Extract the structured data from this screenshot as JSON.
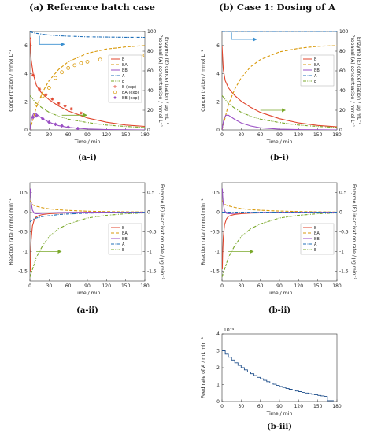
{
  "headers": {
    "left": "(a) Reference batch case",
    "right": "(b) Case 1: Dosing of A"
  },
  "colors": {
    "B": "#e0442c",
    "BA": "#d99a0c",
    "BB": "#9a4fc4",
    "A": "#1f6fb8",
    "E": "#7aa82a",
    "arrow_blue": "#3a8fd0",
    "arrow_green": "#7aa82a",
    "feed": "#1f4f8b"
  },
  "chart_data": [
    {
      "id": "a-i",
      "caption": "(a-i)",
      "type": "line",
      "xlabel": "Time / min",
      "ylabel": "Concentration / mmol L⁻¹",
      "ylabel_right": [
        "Propanal (A) concentration / mmol L⁻¹",
        "Enzyme (E) concentration / μg mL⁻¹"
      ],
      "xlim": [
        0,
        180
      ],
      "ylim": [
        0,
        7
      ],
      "ylim_right": [
        0,
        100
      ],
      "xticks": [
        "0",
        "30",
        "60",
        "90",
        "120",
        "150",
        "180"
      ],
      "yticks": [
        "0",
        "2",
        "4",
        "6"
      ],
      "yticks_right": [
        "0",
        "20",
        "40",
        "60",
        "80",
        "100"
      ],
      "legend": [
        "B",
        "BA",
        "BB",
        "A",
        "E",
        "B (exp)",
        "BA (exp)",
        "BB (exp)"
      ],
      "legend_position": "center-right",
      "series": [
        {
          "name": "B",
          "axis": "left",
          "style": "solid",
          "x": [
            0,
            2,
            5,
            10,
            15,
            20,
            30,
            45,
            60,
            90,
            120,
            150,
            180
          ],
          "y": [
            6.5,
            5.0,
            4.0,
            3.2,
            2.8,
            2.55,
            2.15,
            1.7,
            1.35,
            0.85,
            0.55,
            0.35,
            0.25
          ]
        },
        {
          "name": "BA",
          "axis": "left",
          "style": "dashed",
          "x": [
            0,
            5,
            10,
            20,
            30,
            45,
            60,
            90,
            120,
            150,
            180
          ],
          "y": [
            0,
            0.8,
            1.6,
            2.7,
            3.5,
            4.3,
            4.85,
            5.45,
            5.75,
            5.9,
            6.0
          ]
        },
        {
          "name": "BB",
          "axis": "left",
          "style": "solid",
          "x": [
            0,
            3,
            6,
            10,
            15,
            20,
            30,
            45,
            60,
            90,
            120,
            150,
            180
          ],
          "y": [
            0,
            0.9,
            1.2,
            1.15,
            0.95,
            0.8,
            0.55,
            0.3,
            0.18,
            0.07,
            0.03,
            0.01,
            0.0
          ]
        },
        {
          "name": "A",
          "axis": "right",
          "style": "dashdot",
          "x": [
            0,
            10,
            20,
            30,
            45,
            60,
            90,
            120,
            150,
            180
          ],
          "y": [
            99.5,
            98.2,
            97.2,
            96.5,
            95.7,
            95.2,
            94.6,
            94.3,
            94.1,
            94.0
          ]
        },
        {
          "name": "E",
          "axis": "right",
          "style": "dashdotdot",
          "x": [
            0,
            10,
            20,
            30,
            45,
            60,
            90,
            120,
            150,
            180
          ],
          "y": [
            35,
            27,
            22,
            18,
            14,
            11,
            7.5,
            5,
            3.5,
            2.5
          ]
        }
      ],
      "points": [
        {
          "name": "B (exp)",
          "marker": "star",
          "x": [
            0,
            5,
            15,
            25,
            35,
            45,
            55,
            65,
            80
          ],
          "y": [
            6.5,
            3.9,
            2.9,
            2.5,
            2.2,
            1.9,
            1.7,
            1.5,
            1.2
          ]
        },
        {
          "name": "BA (exp)",
          "marker": "circle",
          "x": [
            10,
            20,
            30,
            40,
            50,
            60,
            70,
            80,
            90,
            110,
            130,
            150,
            180
          ],
          "y": [
            1.8,
            2.4,
            3.0,
            3.7,
            4.1,
            4.4,
            4.6,
            4.75,
            4.85,
            5.0,
            5.1,
            5.15,
            5.3
          ]
        },
        {
          "name": "BB (exp)",
          "marker": "diamond",
          "x": [
            5,
            10,
            20,
            30,
            40,
            50,
            60,
            75
          ],
          "y": [
            0.9,
            1.0,
            0.8,
            0.55,
            0.4,
            0.3,
            0.2,
            0.1
          ]
        }
      ],
      "arrows": [
        {
          "color": "blue",
          "from": [
            15,
            95.5
          ],
          "via": [
            15,
            87
          ],
          "to": [
            50,
            87
          ]
        },
        {
          "color": "green",
          "from": [
            50,
            15
          ],
          "to": [
            85,
            15
          ]
        }
      ]
    },
    {
      "id": "b-i",
      "caption": "(b-i)",
      "type": "line",
      "xlabel": "Time / min",
      "ylabel": "Concentration / mmol L⁻¹",
      "ylabel_right": [
        "Propanal (A) concentration / mmol L⁻¹",
        "Enzyme (E) concentration / μg mL⁻¹"
      ],
      "xlim": [
        0,
        180
      ],
      "ylim": [
        0,
        7
      ],
      "ylim_right": [
        0,
        100
      ],
      "xticks": [
        "0",
        "30",
        "60",
        "90",
        "120",
        "150",
        "180"
      ],
      "yticks": [
        "0",
        "2",
        "4",
        "6"
      ],
      "yticks_right": [
        "0",
        "20",
        "40",
        "60",
        "80",
        "100"
      ],
      "legend": [
        "B",
        "BA",
        "BB",
        "A",
        "E"
      ],
      "legend_position": "center-right",
      "series": [
        {
          "name": "B",
          "axis": "left",
          "style": "solid",
          "x": [
            0,
            2,
            5,
            10,
            15,
            20,
            30,
            45,
            60,
            90,
            120,
            150,
            180
          ],
          "y": [
            6.0,
            4.3,
            3.5,
            3.0,
            2.7,
            2.45,
            2.05,
            1.6,
            1.25,
            0.8,
            0.5,
            0.32,
            0.22
          ]
        },
        {
          "name": "BA",
          "axis": "left",
          "style": "dashed",
          "x": [
            0,
            5,
            10,
            20,
            30,
            45,
            60,
            90,
            120,
            150,
            180
          ],
          "y": [
            0,
            0.9,
            1.8,
            2.9,
            3.7,
            4.5,
            5.0,
            5.55,
            5.8,
            5.95,
            6.0
          ]
        },
        {
          "name": "BB",
          "axis": "left",
          "style": "solid",
          "x": [
            0,
            3,
            6,
            10,
            15,
            20,
            30,
            45,
            60,
            90,
            120,
            150,
            180
          ],
          "y": [
            0,
            0.8,
            1.05,
            1.05,
            0.9,
            0.75,
            0.5,
            0.28,
            0.15,
            0.05,
            0.02,
            0.01,
            0.0
          ]
        },
        {
          "name": "A",
          "axis": "right",
          "style": "dashdot",
          "x": [
            0,
            30,
            60,
            90,
            120,
            150,
            180
          ],
          "y": [
            100,
            100,
            100,
            100,
            100,
            100,
            100
          ]
        },
        {
          "name": "E",
          "axis": "right",
          "style": "dashdotdot",
          "x": [
            0,
            10,
            20,
            30,
            45,
            60,
            90,
            120,
            150,
            180
          ],
          "y": [
            35,
            27,
            22,
            18,
            14,
            11,
            7.5,
            5,
            3.5,
            2.5
          ]
        }
      ],
      "arrows": [
        {
          "color": "blue",
          "from": [
            15,
            99
          ],
          "via": [
            15,
            92
          ],
          "to": [
            50,
            92
          ]
        },
        {
          "color": "green",
          "from": [
            60,
            20
          ],
          "to": [
            95,
            20
          ]
        }
      ]
    },
    {
      "id": "a-ii",
      "caption": "(a-ii)",
      "type": "line",
      "xlabel": "Time / min",
      "ylabel": "Reaction rate / mmol min⁻¹",
      "ylabel_right": [
        "Enzyme (E) inactivation rate / μg min⁻¹"
      ],
      "xlim": [
        0,
        180
      ],
      "ylim": [
        -1.75,
        0.75
      ],
      "ylim_right": [
        -1.75,
        0.75
      ],
      "xticks": [
        "0",
        "30",
        "60",
        "90",
        "120",
        "150",
        "180"
      ],
      "yticks": [
        "-1.5",
        "-1",
        "-0.5",
        "0",
        "0.5"
      ],
      "yticks_right": [
        "-1.5",
        "-1",
        "-0.5",
        "0",
        "0.5"
      ],
      "legend": [
        "B",
        "BA",
        "BB",
        "A",
        "E"
      ],
      "legend_position": "center-right",
      "series": [
        {
          "name": "B",
          "axis": "left",
          "style": "solid",
          "x": [
            0.5,
            1,
            2,
            4,
            7,
            10,
            15,
            20,
            30,
            45,
            60,
            90,
            120,
            180
          ],
          "y": [
            -1.5,
            -1.1,
            -0.7,
            -0.35,
            -0.18,
            -0.12,
            -0.08,
            -0.06,
            -0.04,
            -0.025,
            -0.018,
            -0.01,
            -0.006,
            -0.002
          ]
        },
        {
          "name": "BA",
          "axis": "left",
          "style": "dashed",
          "x": [
            0,
            5,
            10,
            20,
            30,
            45,
            60,
            90,
            120,
            150,
            180
          ],
          "y": [
            0.3,
            0.18,
            0.15,
            0.11,
            0.085,
            0.06,
            0.045,
            0.025,
            0.015,
            0.008,
            0.005
          ]
        },
        {
          "name": "BB",
          "axis": "left",
          "style": "solid",
          "x": [
            0.5,
            1,
            2,
            4,
            7,
            10,
            15,
            20,
            30,
            45,
            60,
            90,
            180
          ],
          "y": [
            0.6,
            0.45,
            0.25,
            0.05,
            -0.03,
            -0.04,
            -0.035,
            -0.03,
            -0.02,
            -0.012,
            -0.008,
            -0.003,
            0.0
          ]
        },
        {
          "name": "A",
          "axis": "left",
          "style": "dashdot",
          "x": [
            0,
            5,
            10,
            20,
            30,
            45,
            60,
            90,
            120,
            150,
            180
          ],
          "y": [
            -0.25,
            -0.18,
            -0.15,
            -0.11,
            -0.09,
            -0.06,
            -0.045,
            -0.025,
            -0.015,
            -0.008,
            -0.005
          ]
        },
        {
          "name": "E",
          "axis": "right",
          "style": "dashdotdot",
          "x": [
            0,
            5,
            10,
            20,
            30,
            45,
            60,
            90,
            120,
            150,
            180
          ],
          "y": [
            -1.65,
            -1.4,
            -1.15,
            -0.85,
            -0.62,
            -0.42,
            -0.3,
            -0.15,
            -0.08,
            -0.04,
            -0.02
          ]
        }
      ],
      "arrows": [
        {
          "color": "green",
          "from": [
            10,
            -1.0
          ],
          "to": [
            45,
            -1.0
          ]
        }
      ]
    },
    {
      "id": "b-ii",
      "caption": "(b-ii)",
      "type": "line",
      "xlabel": "Time / min",
      "ylabel": "Reaction rate / mmol min⁻¹",
      "ylabel_right": [
        "Enzyme (E) inactivation rate / μg min⁻¹"
      ],
      "xlim": [
        0,
        180
      ],
      "ylim": [
        -1.75,
        0.75
      ],
      "ylim_right": [
        -1.75,
        0.75
      ],
      "xticks": [
        "0",
        "30",
        "60",
        "90",
        "120",
        "150",
        "180"
      ],
      "yticks": [
        "-1.5",
        "-1",
        "-0.5",
        "0",
        "0.5"
      ],
      "yticks_right": [
        "-1.5",
        "-1",
        "-0.5",
        "0",
        "0.5"
      ],
      "legend": [
        "B",
        "BA",
        "BB",
        "A",
        "E"
      ],
      "legend_position": "center-right",
      "series": [
        {
          "name": "B",
          "axis": "left",
          "style": "solid",
          "x": [
            0.5,
            1,
            2,
            4,
            7,
            10,
            15,
            20,
            30,
            45,
            60,
            90,
            120,
            180
          ],
          "y": [
            -1.45,
            -1.05,
            -0.65,
            -0.32,
            -0.17,
            -0.11,
            -0.075,
            -0.055,
            -0.038,
            -0.024,
            -0.017,
            -0.01,
            -0.006,
            -0.002
          ]
        },
        {
          "name": "BA",
          "axis": "left",
          "style": "dashed",
          "x": [
            0,
            5,
            10,
            20,
            30,
            45,
            60,
            90,
            120,
            150,
            180
          ],
          "y": [
            0.3,
            0.19,
            0.16,
            0.12,
            0.09,
            0.065,
            0.048,
            0.027,
            0.016,
            0.009,
            0.005
          ]
        },
        {
          "name": "BB",
          "axis": "left",
          "style": "solid",
          "x": [
            0.5,
            1,
            2,
            4,
            7,
            10,
            15,
            20,
            30,
            45,
            60,
            90,
            180
          ],
          "y": [
            0.6,
            0.42,
            0.22,
            0.04,
            -0.03,
            -0.04,
            -0.035,
            -0.03,
            -0.02,
            -0.012,
            -0.008,
            -0.003,
            0.0
          ]
        },
        {
          "name": "A",
          "axis": "left",
          "style": "dashdot",
          "x": [
            0,
            30,
            60,
            90,
            120,
            150,
            180
          ],
          "y": [
            0,
            0,
            0,
            0,
            0,
            0,
            0
          ]
        },
        {
          "name": "E",
          "axis": "right",
          "style": "dashdotdot",
          "x": [
            0,
            5,
            10,
            20,
            30,
            45,
            60,
            90,
            120,
            150,
            180
          ],
          "y": [
            -1.65,
            -1.4,
            -1.15,
            -0.85,
            -0.62,
            -0.42,
            -0.3,
            -0.15,
            -0.08,
            -0.04,
            -0.02
          ]
        }
      ],
      "arrows": [
        {
          "color": "green",
          "from": [
            10,
            -1.0
          ],
          "to": [
            45,
            -1.0
          ]
        }
      ]
    },
    {
      "id": "b-iii",
      "caption": "(b-iii)",
      "type": "line",
      "xlabel": "Time / min",
      "ylabel": "Feed rate of A / mL min⁻¹",
      "scale_note": "10⁻⁴",
      "xlim": [
        0,
        180
      ],
      "ylim": [
        0,
        4
      ],
      "xticks": [
        "0",
        "30",
        "60",
        "90",
        "120",
        "150",
        "180"
      ],
      "yticks": [
        "0",
        "1",
        "2",
        "3",
        "4"
      ],
      "series": [
        {
          "name": "feed",
          "axis": "left",
          "style": "step",
          "x": [
            0,
            5,
            10,
            15,
            20,
            25,
            30,
            35,
            40,
            45,
            50,
            55,
            60,
            65,
            70,
            75,
            80,
            85,
            90,
            95,
            100,
            105,
            110,
            115,
            120,
            125,
            130,
            135,
            140,
            145,
            150,
            155,
            160,
            165,
            170
          ],
          "y": [
            3.0,
            2.8,
            2.62,
            2.45,
            2.29,
            2.14,
            2.0,
            1.87,
            1.75,
            1.64,
            1.53,
            1.43,
            1.34,
            1.25,
            1.17,
            1.09,
            1.02,
            0.95,
            0.89,
            0.83,
            0.77,
            0.72,
            0.67,
            0.62,
            0.58,
            0.54,
            0.5,
            0.46,
            0.43,
            0.39,
            0.36,
            0.33,
            0.3,
            0.05,
            0.05
          ]
        }
      ]
    }
  ]
}
